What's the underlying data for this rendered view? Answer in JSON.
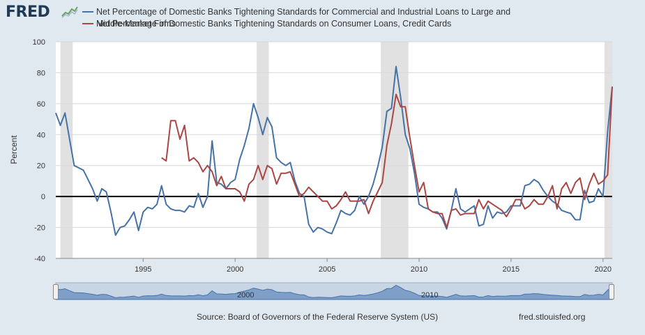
{
  "header": {
    "logo_text": "FRED",
    "logo_icon": "chart-line-icon"
  },
  "legend": {
    "line1": "Net Percentage of Domestic Banks Tightening Standards for Commercial and Industrial Loans to Large and",
    "line2": "Middle-Market Firms",
    "line3": "Net Percentage of Domestic Banks Tightening Standards on Consumer Loans, Credit Cards"
  },
  "footer": {
    "source": "Source: Board of Governors of the Federal Reserve System (US)",
    "url": "fred.stlouisfed.org"
  },
  "navigator": {
    "labels": [
      "2000",
      "2010"
    ]
  },
  "colors": {
    "series1": "#4572a7",
    "series2": "#aa4643",
    "recession": "#e1e1e1",
    "background": "#e1e9f0",
    "plot_bg": "#ffffff",
    "navigator_fill": "#7f9fc8"
  },
  "chart_data": {
    "type": "line",
    "title": "",
    "xlabel": "",
    "ylabel": "Percent",
    "xlim": [
      1990.25,
      2020.5
    ],
    "ylim": [
      -40,
      100
    ],
    "x_ticks": [
      1995,
      2000,
      2005,
      2010,
      2015,
      2020
    ],
    "y_ticks": [
      -40,
      -20,
      0,
      20,
      40,
      60,
      80,
      100
    ],
    "grid": "horizontal",
    "recessions": [
      [
        1990.5,
        1991.17
      ],
      [
        2001.17,
        2001.83
      ],
      [
        2007.92,
        2009.42
      ],
      [
        2020.08,
        2020.5
      ]
    ],
    "series": [
      {
        "name": "Net Percentage of Domestic Banks Tightening Standards for Commercial and Industrial Loans to Large and Middle-Market Firms",
        "color": "#4572a7",
        "points": [
          [
            1990.25,
            54
          ],
          [
            1990.5,
            46
          ],
          [
            1990.75,
            54
          ],
          [
            1991.0,
            37
          ],
          [
            1991.25,
            20
          ],
          [
            1991.75,
            17
          ],
          [
            1992.0,
            11
          ],
          [
            1992.25,
            5
          ],
          [
            1992.5,
            -3
          ],
          [
            1992.75,
            5
          ],
          [
            1993.0,
            3
          ],
          [
            1993.25,
            -10
          ],
          [
            1993.5,
            -25
          ],
          [
            1993.75,
            -20
          ],
          [
            1994.0,
            -19
          ],
          [
            1994.25,
            -15
          ],
          [
            1994.5,
            -10
          ],
          [
            1994.75,
            -22
          ],
          [
            1995.0,
            -10
          ],
          [
            1995.25,
            -7
          ],
          [
            1995.5,
            -8
          ],
          [
            1995.75,
            -5
          ],
          [
            1996.0,
            7
          ],
          [
            1996.25,
            -5
          ],
          [
            1996.5,
            -8
          ],
          [
            1996.75,
            -9
          ],
          [
            1997.0,
            -9
          ],
          [
            1997.25,
            -10
          ],
          [
            1997.5,
            -6
          ],
          [
            1997.75,
            -7
          ],
          [
            1998.0,
            2
          ],
          [
            1998.25,
            -7
          ],
          [
            1998.5,
            0
          ],
          [
            1998.75,
            36
          ],
          [
            1999.0,
            9
          ],
          [
            1999.25,
            8
          ],
          [
            1999.5,
            5
          ],
          [
            1999.75,
            9
          ],
          [
            2000.0,
            11
          ],
          [
            2000.25,
            24
          ],
          [
            2000.5,
            33
          ],
          [
            2000.75,
            44
          ],
          [
            2001.0,
            60
          ],
          [
            2001.25,
            51
          ],
          [
            2001.5,
            40
          ],
          [
            2001.75,
            51
          ],
          [
            2002.0,
            45
          ],
          [
            2002.25,
            25
          ],
          [
            2002.5,
            22
          ],
          [
            2002.75,
            20
          ],
          [
            2003.0,
            22
          ],
          [
            2003.25,
            10
          ],
          [
            2003.5,
            2
          ],
          [
            2003.75,
            0
          ],
          [
            2004.0,
            -18
          ],
          [
            2004.25,
            -23
          ],
          [
            2004.5,
            -20
          ],
          [
            2004.75,
            -21
          ],
          [
            2005.0,
            -23
          ],
          [
            2005.25,
            -24
          ],
          [
            2005.5,
            -17
          ],
          [
            2005.75,
            -9
          ],
          [
            2006.0,
            -11
          ],
          [
            2006.25,
            -12
          ],
          [
            2006.5,
            -9
          ],
          [
            2006.75,
            0
          ],
          [
            2007.0,
            -5
          ],
          [
            2007.25,
            0
          ],
          [
            2007.5,
            8
          ],
          [
            2007.75,
            19
          ],
          [
            2008.0,
            32
          ],
          [
            2008.25,
            55
          ],
          [
            2008.5,
            57
          ],
          [
            2008.75,
            84
          ],
          [
            2009.0,
            64
          ],
          [
            2009.25,
            40
          ],
          [
            2009.5,
            31
          ],
          [
            2009.75,
            15
          ],
          [
            2010.0,
            -5
          ],
          [
            2010.25,
            -7
          ],
          [
            2010.5,
            -8
          ],
          [
            2010.75,
            -10
          ],
          [
            2011.0,
            -10
          ],
          [
            2011.25,
            -14
          ],
          [
            2011.5,
            -21
          ],
          [
            2011.75,
            -9
          ],
          [
            2012.0,
            5
          ],
          [
            2012.25,
            -8
          ],
          [
            2012.5,
            -10
          ],
          [
            2012.75,
            -8
          ],
          [
            2013.0,
            -6
          ],
          [
            2013.25,
            -19
          ],
          [
            2013.5,
            -18
          ],
          [
            2013.75,
            -6
          ],
          [
            2014.0,
            -14
          ],
          [
            2014.25,
            -10
          ],
          [
            2014.5,
            -11
          ],
          [
            2014.75,
            -10
          ],
          [
            2015.0,
            -6
          ],
          [
            2015.25,
            -6
          ],
          [
            2015.5,
            -6
          ],
          [
            2015.75,
            7
          ],
          [
            2016.0,
            8
          ],
          [
            2016.25,
            11
          ],
          [
            2016.5,
            9
          ],
          [
            2016.75,
            4
          ],
          [
            2017.0,
            0
          ],
          [
            2017.25,
            -3
          ],
          [
            2017.5,
            -5
          ],
          [
            2017.75,
            -9
          ],
          [
            2018.0,
            -10
          ],
          [
            2018.25,
            -11
          ],
          [
            2018.5,
            -15
          ],
          [
            2018.75,
            -15
          ],
          [
            2019.0,
            4
          ],
          [
            2019.25,
            -4
          ],
          [
            2019.5,
            -3
          ],
          [
            2019.75,
            5
          ],
          [
            2020.0,
            0
          ],
          [
            2020.25,
            42
          ],
          [
            2020.5,
            71
          ]
        ]
      },
      {
        "name": "Net Percentage of Domestic Banks Tightening Standards on Consumer Loans, Credit Cards",
        "color": "#aa4643",
        "points": [
          [
            1996.0,
            25
          ],
          [
            1996.25,
            23
          ],
          [
            1996.5,
            49
          ],
          [
            1996.75,
            49
          ],
          [
            1997.0,
            37
          ],
          [
            1997.25,
            46
          ],
          [
            1997.5,
            23
          ],
          [
            1997.75,
            25
          ],
          [
            1998.0,
            22
          ],
          [
            1998.25,
            16
          ],
          [
            1998.5,
            20
          ],
          [
            1998.75,
            16
          ],
          [
            1999.0,
            7
          ],
          [
            1999.25,
            13
          ],
          [
            1999.5,
            5
          ],
          [
            1999.75,
            5
          ],
          [
            2000.0,
            5
          ],
          [
            2000.25,
            3
          ],
          [
            2000.5,
            -3
          ],
          [
            2000.75,
            8
          ],
          [
            2001.0,
            11
          ],
          [
            2001.25,
            20
          ],
          [
            2001.5,
            11
          ],
          [
            2001.75,
            20
          ],
          [
            2002.0,
            18
          ],
          [
            2002.25,
            8
          ],
          [
            2002.5,
            15
          ],
          [
            2002.75,
            15
          ],
          [
            2003.0,
            16
          ],
          [
            2003.25,
            8
          ],
          [
            2003.5,
            0
          ],
          [
            2003.75,
            2
          ],
          [
            2004.0,
            6
          ],
          [
            2004.25,
            3
          ],
          [
            2004.5,
            0
          ],
          [
            2004.75,
            -3
          ],
          [
            2005.0,
            -3
          ],
          [
            2005.25,
            -8
          ],
          [
            2005.5,
            -6
          ],
          [
            2005.75,
            -2
          ],
          [
            2006.0,
            3
          ],
          [
            2006.25,
            -3
          ],
          [
            2006.5,
            -3
          ],
          [
            2006.75,
            -3
          ],
          [
            2007.0,
            -2
          ],
          [
            2007.25,
            -11
          ],
          [
            2007.5,
            -3
          ],
          [
            2007.75,
            3
          ],
          [
            2008.0,
            9
          ],
          [
            2008.25,
            33
          ],
          [
            2008.5,
            47
          ],
          [
            2008.75,
            66
          ],
          [
            2009.0,
            58
          ],
          [
            2009.25,
            58
          ],
          [
            2009.5,
            38
          ],
          [
            2009.75,
            20
          ],
          [
            2010.0,
            3
          ],
          [
            2010.25,
            9
          ],
          [
            2010.5,
            -8
          ],
          [
            2010.75,
            -10
          ],
          [
            2011.0,
            -11
          ],
          [
            2011.25,
            -11
          ],
          [
            2011.5,
            -20
          ],
          [
            2011.75,
            -9
          ],
          [
            2012.0,
            -8
          ],
          [
            2012.25,
            -12
          ],
          [
            2012.5,
            -11
          ],
          [
            2012.75,
            -11
          ],
          [
            2013.0,
            -11
          ],
          [
            2013.25,
            -2
          ],
          [
            2013.5,
            -8
          ],
          [
            2013.75,
            -3
          ],
          [
            2014.0,
            -5
          ],
          [
            2014.25,
            -7
          ],
          [
            2014.5,
            -9
          ],
          [
            2014.75,
            -13
          ],
          [
            2015.0,
            -8
          ],
          [
            2015.25,
            -2
          ],
          [
            2015.5,
            -2
          ],
          [
            2015.75,
            -8
          ],
          [
            2016.0,
            -6
          ],
          [
            2016.25,
            -2
          ],
          [
            2016.5,
            -5
          ],
          [
            2016.75,
            -5
          ],
          [
            2017.0,
            0
          ],
          [
            2017.25,
            7
          ],
          [
            2017.5,
            -8
          ],
          [
            2017.75,
            5
          ],
          [
            2018.0,
            9
          ],
          [
            2018.25,
            2
          ],
          [
            2018.5,
            9
          ],
          [
            2018.75,
            12
          ],
          [
            2019.0,
            -2
          ],
          [
            2019.25,
            8
          ],
          [
            2019.5,
            15
          ],
          [
            2019.75,
            8
          ],
          [
            2020.0,
            10
          ],
          [
            2020.25,
            14
          ],
          [
            2020.5,
            71
          ]
        ]
      }
    ]
  }
}
